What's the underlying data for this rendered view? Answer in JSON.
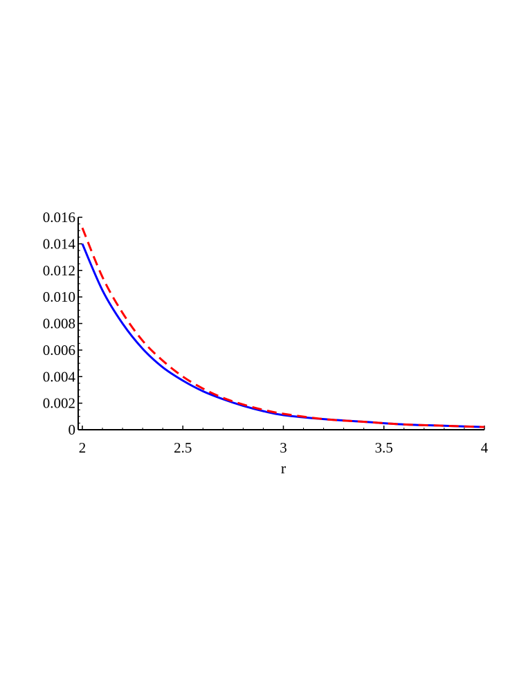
{
  "chart_data": {
    "type": "line",
    "title": "",
    "xlabel": "r",
    "ylabel": "",
    "xlim": [
      2,
      4
    ],
    "ylim": [
      0,
      0.016
    ],
    "x_ticks": [
      "2",
      "2.5",
      "3",
      "3.5",
      "4"
    ],
    "y_ticks": [
      "0",
      "0.002",
      "0.004",
      "0.006",
      "0.008",
      "0.010",
      "0.012",
      "0.014",
      "0.016"
    ],
    "grid": false,
    "legend": "none",
    "x": [
      2.0,
      2.1,
      2.2,
      2.3,
      2.4,
      2.5,
      2.6,
      2.7,
      2.8,
      2.9,
      3.0,
      3.2,
      3.4,
      3.6,
      3.8,
      4.0
    ],
    "series": [
      {
        "color": "#0000ff",
        "style": "solid",
        "values": [
          0.014,
          0.0105,
          0.008,
          0.0061,
          0.0047,
          0.0037,
          0.0029,
          0.0023,
          0.0018,
          0.0014,
          0.0011,
          0.0008,
          0.0006,
          0.0004,
          0.0003,
          0.0002
        ]
      },
      {
        "color": "#ff0000",
        "style": "dashed",
        "values": [
          0.0152,
          0.0115,
          0.0088,
          0.0067,
          0.0052,
          0.004,
          0.0031,
          0.0024,
          0.0019,
          0.0015,
          0.0012,
          0.0008,
          0.0006,
          0.0004,
          0.0003,
          0.0002
        ]
      }
    ]
  }
}
